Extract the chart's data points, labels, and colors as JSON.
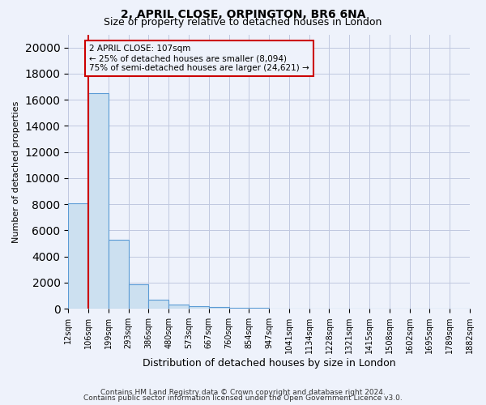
{
  "title1": "2, APRIL CLOSE, ORPINGTON, BR6 6NA",
  "title2": "Size of property relative to detached houses in London",
  "xlabel": "Distribution of detached houses by size in London",
  "ylabel": "Number of detached properties",
  "footnote1": "Contains HM Land Registry data © Crown copyright and database right 2024.",
  "footnote2": "Contains public sector information licensed under the Open Government Licence v3.0.",
  "annotation_line1": "2 APRIL CLOSE: 107sqm",
  "annotation_line2": "← 25% of detached houses are smaller (8,094)",
  "annotation_line3": "75% of semi-detached houses are larger (24,621) →",
  "bar_color": "#cce0f0",
  "bar_edge_color": "#5b9bd5",
  "red_line_color": "#cc0000",
  "annotation_box_color": "#cc0000",
  "bg_color": "#eef2fb",
  "grid_color": "#c0c8e0",
  "bin_labels": [
    "12sqm",
    "106sqm",
    "199sqm",
    "293sqm",
    "386sqm",
    "480sqm",
    "573sqm",
    "667sqm",
    "760sqm",
    "854sqm",
    "947sqm",
    "1041sqm",
    "1134sqm",
    "1228sqm",
    "1321sqm",
    "1415sqm",
    "1508sqm",
    "1602sqm",
    "1695sqm",
    "1789sqm",
    "1882sqm"
  ],
  "counts": [
    8094,
    16500,
    5300,
    1850,
    700,
    300,
    180,
    120,
    80,
    60,
    0,
    0,
    0,
    0,
    0,
    0,
    0,
    0,
    0,
    0
  ],
  "ylim": [
    0,
    21000
  ],
  "yticks": [
    0,
    2000,
    4000,
    6000,
    8000,
    10000,
    12000,
    14000,
    16000,
    18000,
    20000
  ]
}
